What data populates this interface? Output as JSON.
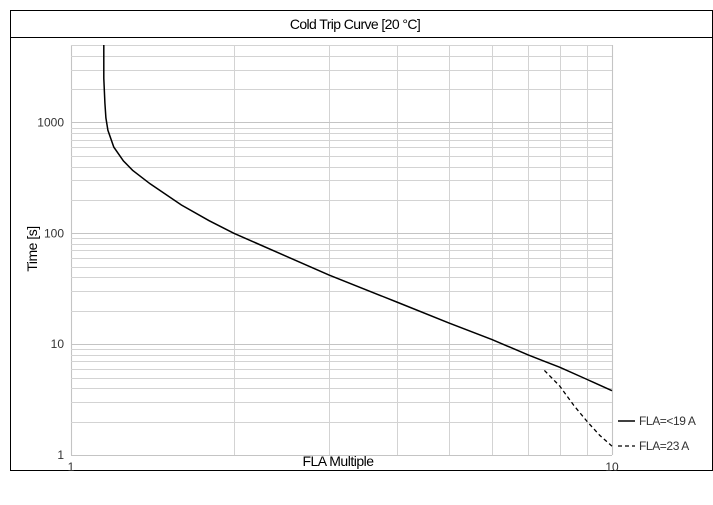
{
  "chart_data": {
    "type": "line",
    "title": "Cold Trip Curve [20 °C]",
    "xlabel": "FLA Multiple",
    "ylabel": "Time [s]",
    "xscale": "log",
    "yscale": "log",
    "xlim": [
      1,
      10
    ],
    "ylim": [
      1,
      5000
    ],
    "grid": true,
    "legend_position": "bottom-right, outside plot",
    "x_tick_labels": [
      "1",
      "10"
    ],
    "y_tick_labels": [
      "1",
      "10",
      "100",
      "1000"
    ],
    "series": [
      {
        "name": "FLA=<19 A",
        "line_style": "solid",
        "x": [
          1.15,
          1.15,
          1.155,
          1.16,
          1.17,
          1.2,
          1.25,
          1.3,
          1.4,
          1.6,
          1.8,
          2.0,
          2.5,
          3.0,
          4.0,
          5.0,
          6.0,
          7.0,
          7.5,
          8.0,
          9.0,
          10.0
        ],
        "y": [
          5000,
          2500,
          1500,
          1100,
          850,
          600,
          450,
          370,
          280,
          180,
          130,
          100,
          62,
          42,
          24,
          15.5,
          11,
          8,
          7,
          6.2,
          4.8,
          3.8
        ]
      },
      {
        "name": "FLA=23 A",
        "line_style": "dashed",
        "x": [
          7.5,
          8.0,
          8.5,
          9.0,
          9.5,
          10.0
        ],
        "y": [
          5.8,
          4.2,
          2.8,
          2.0,
          1.5,
          1.2
        ]
      }
    ],
    "colors": {
      "curve": "#000000",
      "grid": "#c8c8c8",
      "frame": "#000000"
    }
  }
}
